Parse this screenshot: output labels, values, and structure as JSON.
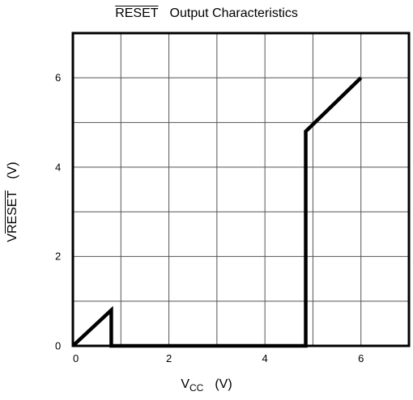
{
  "chart_data": {
    "type": "line",
    "title": {
      "signal": "RESET",
      "text": "Output Characteristics"
    },
    "xlabel": {
      "symbol": "V",
      "subscript": "CC",
      "unit": "(V)"
    },
    "ylabel": {
      "symbol": "V",
      "subscript": "RESET",
      "unit": "(V)"
    },
    "xlim": [
      0,
      7
    ],
    "ylim": [
      0,
      7
    ],
    "xticks": [
      0,
      2,
      4,
      6
    ],
    "yticks": [
      0,
      2,
      4,
      6
    ],
    "grid": true,
    "series": [
      {
        "x": [
          0,
          0.8,
          0.8,
          4.85,
          4.85,
          6.0
        ],
        "y": [
          0,
          0.8,
          0,
          0,
          4.8,
          6.0
        ]
      }
    ]
  }
}
